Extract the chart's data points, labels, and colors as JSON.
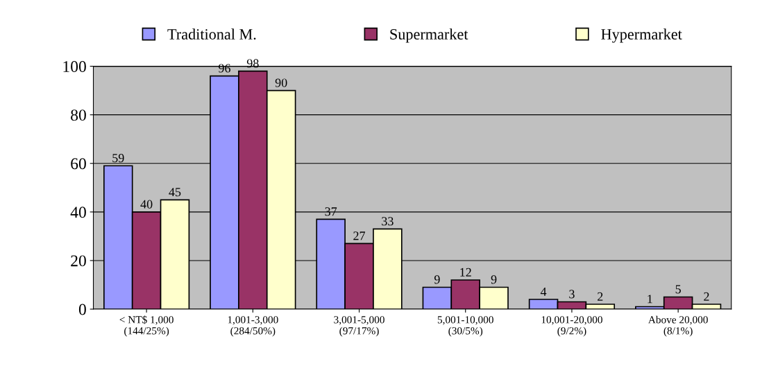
{
  "chart_data": {
    "type": "bar",
    "categories": [
      "< NT$ 1,000\n(144/25%)",
      "1,001-3,000\n(284/50%)",
      "3,001-5,000\n(97/17%)",
      "5,001-10,000\n(30/5%)",
      "10,001-20,000\n(9/2%)",
      "Above 20,000\n(8/1%)"
    ],
    "series": [
      {
        "name": "Traditional M.",
        "color": "#9999ff",
        "values": [
          59,
          96,
          37,
          9,
          4,
          1
        ]
      },
      {
        "name": "Supermarket",
        "color": "#993366",
        "values": [
          40,
          98,
          27,
          12,
          3,
          5
        ]
      },
      {
        "name": "Hypermarket",
        "color": "#ffffcc",
        "values": [
          45,
          90,
          33,
          9,
          2,
          2
        ]
      }
    ],
    "ylim": [
      0,
      100
    ],
    "yticks": [
      0,
      20,
      40,
      60,
      80,
      100
    ],
    "grid": "y",
    "legend": "top",
    "data_labels": true
  }
}
